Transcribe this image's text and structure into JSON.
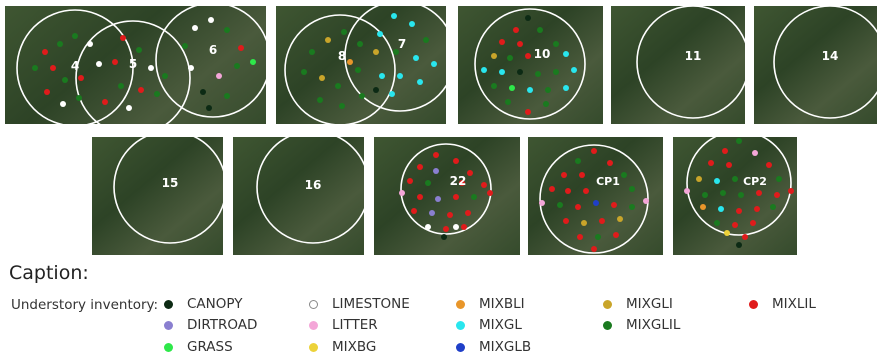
{
  "plots": [
    {
      "label": "4"
    },
    {
      "label": "5"
    },
    {
      "label": "6"
    },
    {
      "label": "8"
    },
    {
      "label": "7"
    },
    {
      "label": "10"
    },
    {
      "label": "11"
    },
    {
      "label": "14"
    },
    {
      "label": "15"
    },
    {
      "label": "16"
    },
    {
      "label": "22"
    },
    {
      "label": "CP1"
    },
    {
      "label": "CP2"
    }
  ],
  "caption": {
    "title": "Caption:",
    "intro": "Understory inventory:"
  },
  "legend": [
    {
      "label": "CANOPY",
      "color": "#0c2a14"
    },
    {
      "label": "LIMESTONE",
      "color": "#ffffff"
    },
    {
      "label": "MIXBLI",
      "color": "#e8962a"
    },
    {
      "label": "MIXGLI",
      "color": "#c9a52a"
    },
    {
      "label": "MIXLIL",
      "color": "#e01b1b"
    },
    {
      "label": "DIRTROAD",
      "color": "#8a7fd0"
    },
    {
      "label": "LITTER",
      "color": "#f4a6d8"
    },
    {
      "label": "MIXGL",
      "color": "#29e6ee"
    },
    {
      "label": "MIXGLIL",
      "color": "#1a7a1f"
    },
    {
      "label": "GRASS",
      "color": "#2ee84a"
    },
    {
      "label": "MIXBG",
      "color": "#ecd23a"
    },
    {
      "label": "MIXGLB",
      "color": "#1f3fc8"
    }
  ]
}
